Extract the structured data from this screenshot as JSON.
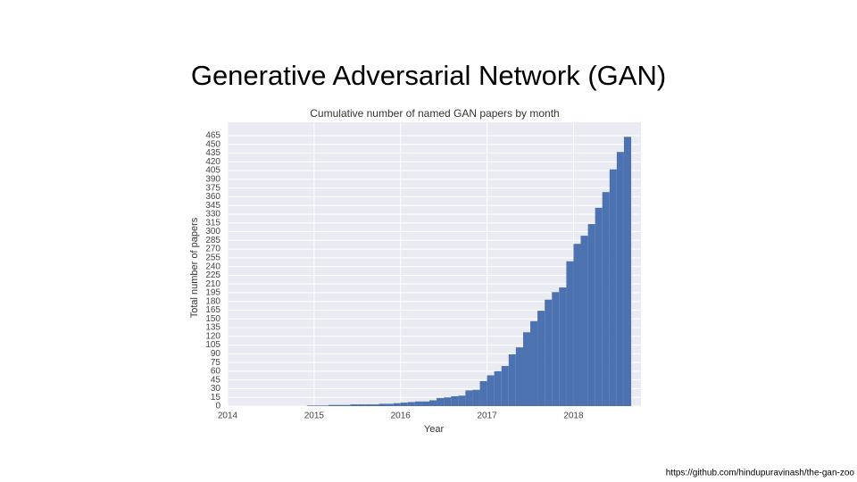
{
  "slide_title": "Generative Adversarial Network (GAN)",
  "source": "https://github.com/hindupuravinash/the-gan-zoo",
  "chart_data": {
    "type": "histogram",
    "title": "Cumulative number of named GAN papers by month",
    "xlabel": "Year",
    "ylabel": "Total number of papers",
    "bins": [
      2014.917,
      2015,
      2015.083,
      2015.167,
      2015.25,
      2015.333,
      2015.417,
      2015.5,
      2015.583,
      2015.667,
      2015.75,
      2015.833,
      2015.917,
      2016,
      2016.083,
      2016.167,
      2016.25,
      2016.333,
      2016.417,
      2016.5,
      2016.583,
      2016.667,
      2016.75,
      2016.833,
      2016.917,
      2017,
      2017.083,
      2017.167,
      2017.25,
      2017.333,
      2017.417,
      2017.5,
      2017.583,
      2017.667,
      2017.75,
      2017.833,
      2017.917,
      2018,
      2018.083,
      2018.167,
      2018.25,
      2018.333,
      2018.417,
      2018.5,
      2018.583,
      2018.667
    ],
    "counts": [
      1,
      1,
      1,
      2,
      2,
      2,
      3,
      3,
      3,
      3,
      4,
      4,
      5,
      6,
      7,
      8,
      8,
      10,
      14,
      15,
      17,
      18,
      27,
      28,
      43,
      53,
      60,
      69,
      89,
      101,
      127,
      146,
      164,
      183,
      196,
      204,
      249,
      279,
      293,
      313,
      341,
      368,
      407,
      437,
      463
    ],
    "color": "#4c72b0",
    "xlim": [
      2014,
      2018.78
    ],
    "xticks": [
      2014,
      2015,
      2016,
      2017,
      2018
    ],
    "ylim": [
      0,
      465
    ],
    "yticks": [
      0,
      15,
      30,
      45,
      60,
      75,
      90,
      105,
      120,
      135,
      150,
      165,
      180,
      195,
      210,
      225,
      240,
      255,
      270,
      285,
      300,
      315,
      330,
      345,
      360,
      375,
      390,
      405,
      420,
      435,
      450,
      465
    ],
    "grid": true
  }
}
